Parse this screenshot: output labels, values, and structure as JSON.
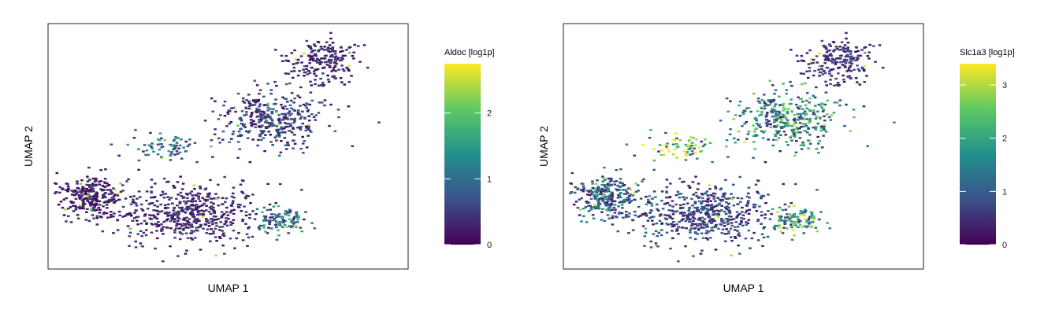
{
  "chart_data": [
    {
      "type": "scatter",
      "title": "",
      "xlabel": "UMAP 1",
      "ylabel": "UMAP 2",
      "colorbar": {
        "label": "Aldoc [log1p]",
        "range": [
          0,
          2.75
        ],
        "ticks": [
          0,
          1,
          2
        ],
        "colormap": [
          "#440154",
          "#3b528b",
          "#21908d",
          "#5dc963",
          "#fde725"
        ]
      },
      "regions": [
        {
          "name": "lower-left",
          "center": [
            -6.2,
            -1.8
          ],
          "spread": [
            1.4,
            1.0
          ],
          "count": 260,
          "mean_value": 0.25
        },
        {
          "name": "lower-middle",
          "center": [
            -1.5,
            -2.6
          ],
          "spread": [
            3.0,
            1.3
          ],
          "count": 520,
          "mean_value": 0.35
        },
        {
          "name": "lower-right",
          "center": [
            2.8,
            -2.9
          ],
          "spread": [
            1.1,
            0.6
          ],
          "count": 90,
          "mean_value": 1.1
        },
        {
          "name": "upper-middle",
          "center": [
            2.2,
            1.8
          ],
          "spread": [
            2.4,
            1.2
          ],
          "count": 360,
          "mean_value": 0.55
        },
        {
          "name": "top-right",
          "center": [
            4.6,
            4.6
          ],
          "spread": [
            1.5,
            1.0
          ],
          "count": 200,
          "mean_value": 0.3
        },
        {
          "name": "bridge",
          "center": [
            -2.6,
            0.6
          ],
          "spread": [
            1.6,
            0.7
          ],
          "count": 70,
          "mean_value": 0.9
        }
      ]
    },
    {
      "type": "scatter",
      "title": "",
      "xlabel": "UMAP 1",
      "ylabel": "UMAP 2",
      "colorbar": {
        "label": "Slc1a3 [log1p]",
        "range": [
          0,
          3.4
        ],
        "ticks": [
          0,
          1,
          2,
          3
        ],
        "colormap": [
          "#440154",
          "#3b528b",
          "#21908d",
          "#5dc963",
          "#fde725"
        ]
      },
      "regions": [
        {
          "name": "lower-left",
          "center": [
            -6.2,
            -1.8
          ],
          "spread": [
            1.4,
            1.0
          ],
          "count": 260,
          "mean_value": 1.0
        },
        {
          "name": "lower-middle",
          "center": [
            -1.5,
            -2.6
          ],
          "spread": [
            3.0,
            1.3
          ],
          "count": 520,
          "mean_value": 0.7
        },
        {
          "name": "lower-right",
          "center": [
            2.8,
            -2.9
          ],
          "spread": [
            1.1,
            0.6
          ],
          "count": 90,
          "mean_value": 1.9
        },
        {
          "name": "upper-middle",
          "center": [
            2.2,
            1.8
          ],
          "spread": [
            2.4,
            1.2
          ],
          "count": 360,
          "mean_value": 1.6
        },
        {
          "name": "top-right",
          "center": [
            4.6,
            4.6
          ],
          "spread": [
            1.5,
            1.0
          ],
          "count": 200,
          "mean_value": 0.5
        },
        {
          "name": "bridge",
          "center": [
            -2.6,
            0.6
          ],
          "spread": [
            1.6,
            0.7
          ],
          "count": 70,
          "mean_value": 2.4
        }
      ]
    }
  ]
}
